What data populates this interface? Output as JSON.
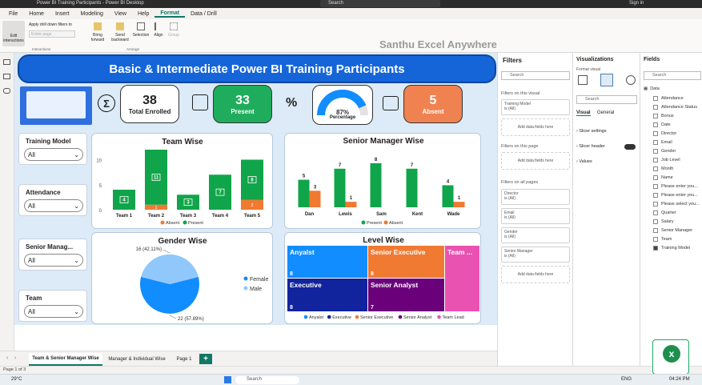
{
  "titlebar": {
    "title": "Power BI Training Participants - Power BI Desktop",
    "search": "Search",
    "signin": "Sign in"
  },
  "ribbon": {
    "tabs": [
      "File",
      "Home",
      "Insert",
      "Modeling",
      "View",
      "Help",
      "Format",
      "Data / Drill"
    ],
    "buttons": {
      "edit": "Edit interactions",
      "apply": "Apply drill down filters to",
      "apply_placeholder": "Entire page",
      "bring": "Bring forward",
      "send": "Send backward",
      "selection": "Selection",
      "align": "Align",
      "group": "Group"
    },
    "groups": {
      "interactions": "Interactions",
      "arrange": "Arrange"
    }
  },
  "watermark": "Santhu Excel Anywhere",
  "report": {
    "title": "Basic & Intermediate Power BI Training Participants",
    "kpis": {
      "total_value": "38",
      "total_label": "Total Enrolled",
      "present_value": "33",
      "present_label": "Present",
      "percent_symbol": "%",
      "gauge_value": "87%",
      "gauge_label": "Percentage",
      "absent_value": "5",
      "absent_label": "Absent"
    },
    "slicers": [
      {
        "title": "Training Model",
        "value": "All"
      },
      {
        "title": "Attendance",
        "value": "All"
      },
      {
        "title": "Senior Manag...",
        "value": "All"
      },
      {
        "title": "Team",
        "value": "All"
      }
    ]
  },
  "colors": {
    "present": "#10a54a",
    "absent": "#f07a32",
    "female": "#118dff",
    "male": "#91c8fb",
    "banner": "#1565d8"
  },
  "chart_data": [
    {
      "type": "bar",
      "title": "Team Wise",
      "categories": [
        "Team 1",
        "Team 2",
        "Team 3",
        "Team 4",
        "Team 5"
      ],
      "series": [
        {
          "name": "Absent",
          "values": [
            null,
            1,
            null,
            null,
            2
          ]
        },
        {
          "name": "Present",
          "values": [
            4,
            11,
            3,
            7,
            8
          ]
        }
      ],
      "yticks": [
        "0",
        "5",
        "10"
      ],
      "ylim": [
        0,
        12
      ],
      "legend": "bottom"
    },
    {
      "type": "bar",
      "title": "Senior Manager Wise",
      "categories": [
        "Dan",
        "Lewis",
        "Sam",
        "Kent",
        "Wade"
      ],
      "series": [
        {
          "name": "Present",
          "values": [
            5,
            7,
            8,
            7,
            4
          ]
        },
        {
          "name": "Absent",
          "values": [
            3,
            1,
            null,
            null,
            1
          ]
        }
      ],
      "ylim": [
        0,
        9
      ],
      "legend": "bottom"
    },
    {
      "type": "pie",
      "title": "Gender Wise",
      "labels": [
        "Female",
        "Male"
      ],
      "values": [
        22,
        16
      ],
      "data_labels": [
        "22 (57.89%)",
        "16 (42.11%)"
      ],
      "legend": "right"
    },
    {
      "type": "treemap",
      "title": "Level Wise",
      "items": [
        {
          "label": "Anyalst",
          "value": 8,
          "color": "#118dff"
        },
        {
          "label": "Senior Executive",
          "value": 8,
          "color": "#f07a32"
        },
        {
          "label": "Team ...",
          "value": null,
          "color": "#e952b0"
        },
        {
          "label": "Executive",
          "value": 8,
          "color": "#12239e"
        },
        {
          "label": "Senior Analyst",
          "value": 7,
          "color": "#6b007b"
        }
      ],
      "legend_items": [
        "Anyalst",
        "Executive",
        "Senior Executive",
        "Senior Analyst",
        "Team Lead"
      ],
      "legend": "bottom"
    }
  ],
  "filters": {
    "title": "Filters",
    "search": "Search",
    "on_visual": "Filters on this visual",
    "on_page": "Filters on this page",
    "on_all": "Filters on all pages",
    "add": "Add data fields here",
    "visual_cards": [
      {
        "name": "Training Model",
        "val": "is (All)"
      }
    ],
    "all_cards": [
      {
        "name": "Director",
        "val": "is (All)"
      },
      {
        "name": "Email",
        "val": "is (All)"
      },
      {
        "name": "Gender",
        "val": "is (All)"
      },
      {
        "name": "Senior Manager",
        "val": "is (All)"
      }
    ]
  },
  "viz": {
    "title": "Visualizations",
    "format_visual": "Format visual",
    "search": "Search",
    "tab_visual": "Visual",
    "tab_general": "General",
    "sections": [
      "Slicer settings",
      "Slicer header",
      "Values"
    ]
  },
  "fields": {
    "title": "Fields",
    "search": "Search",
    "table": "Data",
    "items": [
      "Attendance",
      "Attendance Status",
      "Bonus",
      "Date",
      "Director",
      "Email",
      "Gender",
      "Job Level",
      "Month",
      "Name",
      "Please enter you...",
      "Please enter you...",
      "Please select you...",
      "Quarter",
      "Salary",
      "Senior Manager",
      "Team",
      "Training Model"
    ]
  },
  "pages": {
    "tabs": [
      "Team & Senior Manager Wise",
      "Manager & Individual Wise",
      "Page 1"
    ],
    "add": "+"
  },
  "status": {
    "page": "Page 1 of 3"
  },
  "taskbar": {
    "temp": "29°C",
    "search": "Search",
    "lang": "ENG",
    "time": "04:24 PM"
  }
}
